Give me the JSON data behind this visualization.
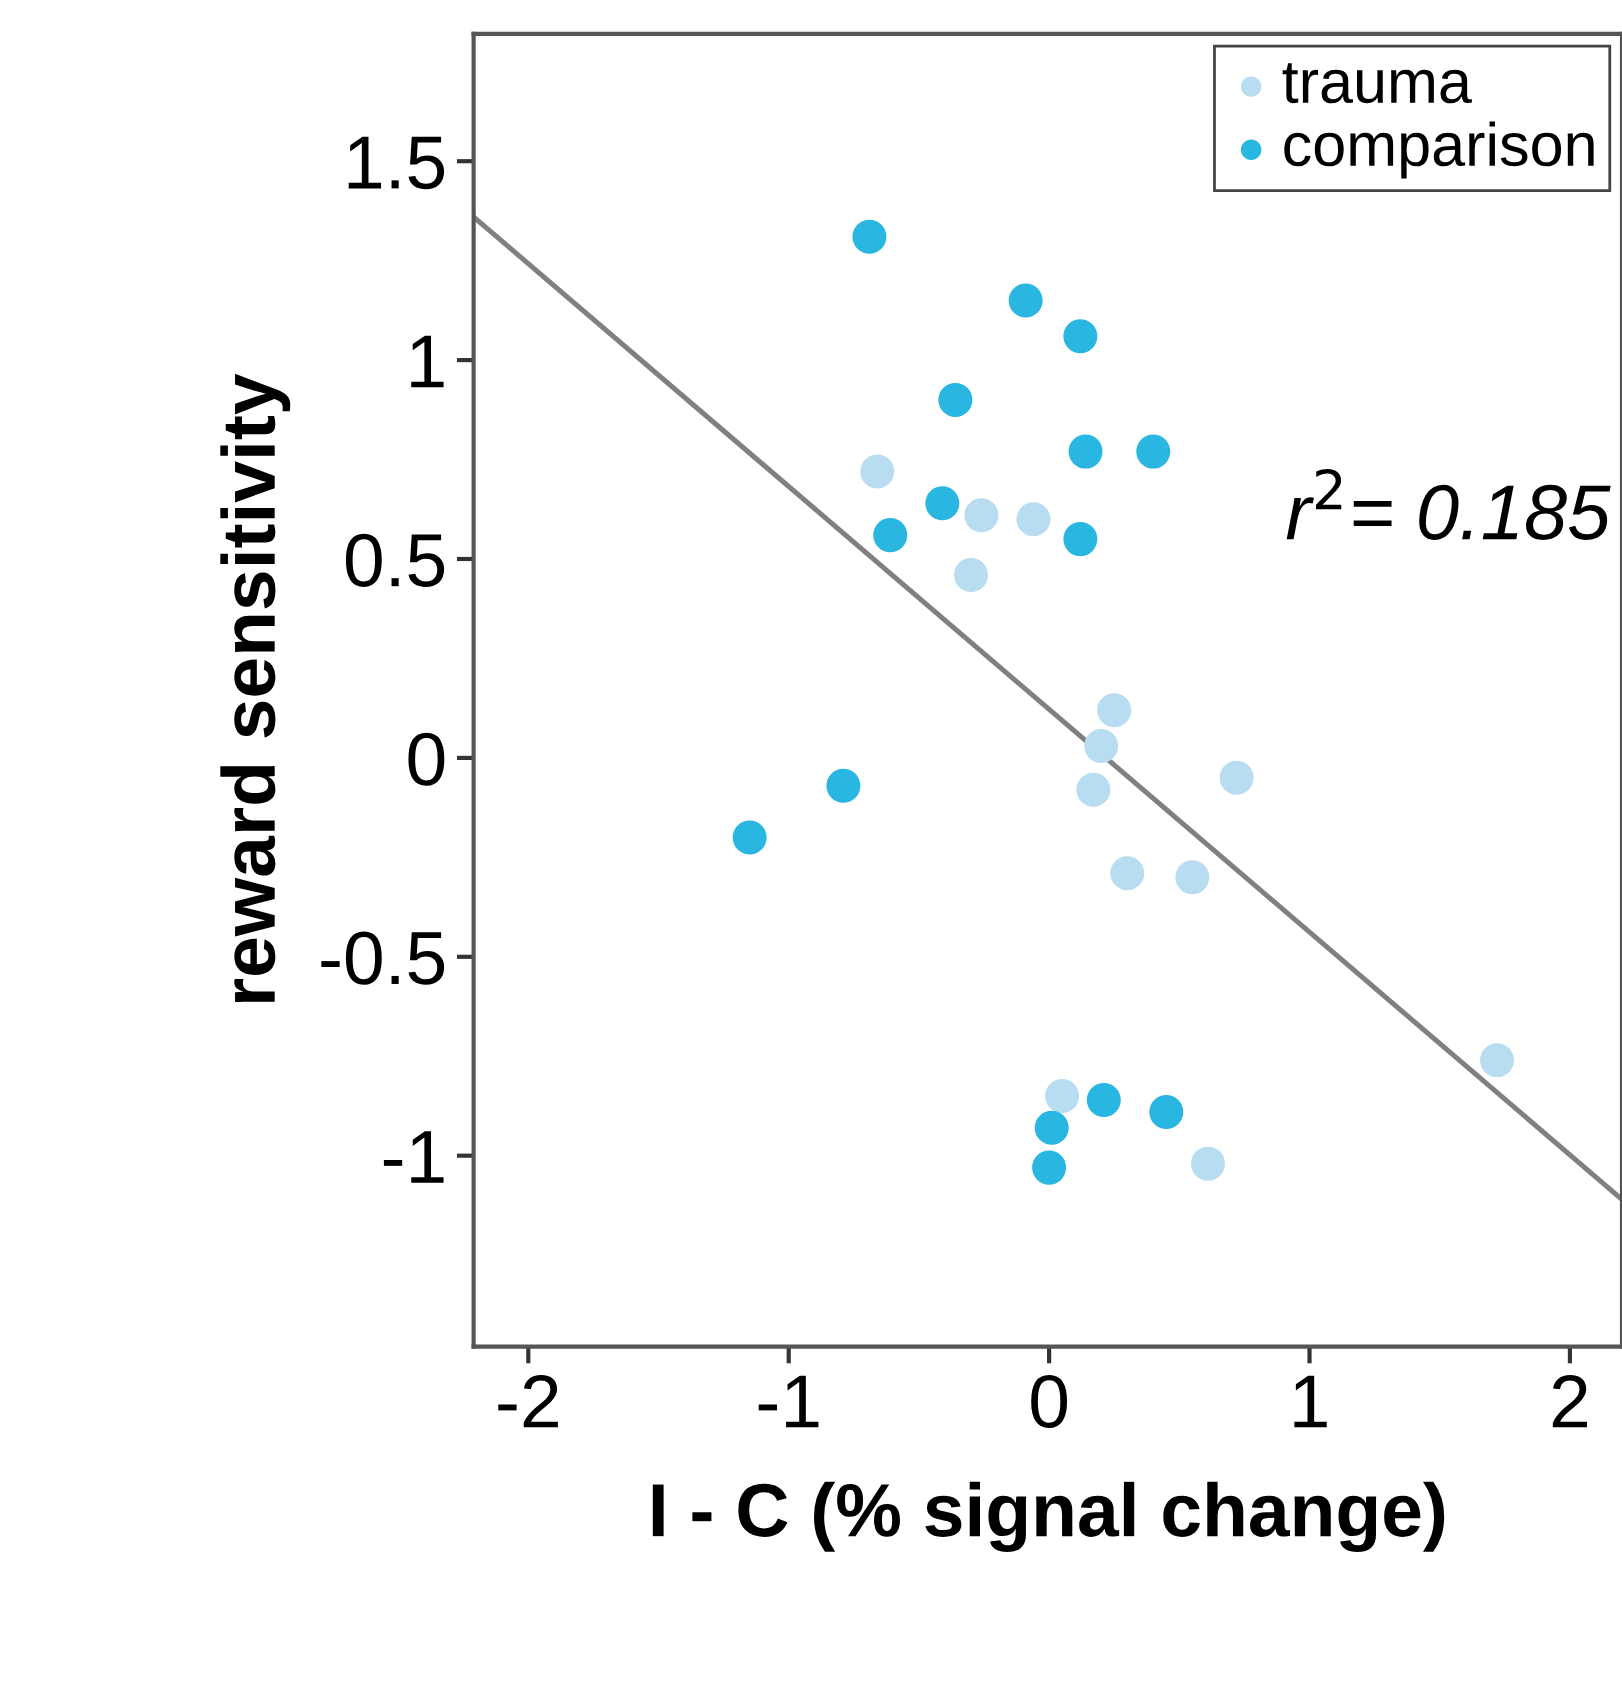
{
  "chart_data": {
    "type": "scatter",
    "xlabel": "I - C (% signal change)",
    "ylabel": "reward sensitivity",
    "xlim": [
      -2.21,
      2.2
    ],
    "ylim": [
      -1.48,
      1.82
    ],
    "xticks": [
      -2,
      -1,
      0,
      1,
      2
    ],
    "yticks": [
      {
        "value": -1,
        "label": "-1"
      },
      {
        "value": -0.5,
        "label": "-0.5"
      },
      0,
      0.5,
      1,
      1.5
    ],
    "grid": false,
    "legend": "top right",
    "marker": "circle",
    "annotations": [
      "r$^{2}$= 0.185"
    ],
    "series": [
      {
        "name": "trauma",
        "color": "#b8dcf0",
        "x": [
          -0.66,
          -0.26,
          -0.06,
          -0.3,
          0.25,
          0.2,
          0.17,
          0.72,
          0.3,
          0.55,
          1.72,
          0.05,
          0.61
        ],
        "values": [
          0.72,
          0.61,
          0.6,
          0.46,
          0.12,
          0.03,
          -0.08,
          -0.05,
          -0.29,
          -0.3,
          -0.76,
          -0.85,
          -1.02
        ]
      },
      {
        "name": "comparison",
        "color": "#29b6e0",
        "x": [
          -0.69,
          -0.09,
          0.12,
          -0.36,
          0.14,
          0.4,
          -0.41,
          -0.61,
          0.12,
          -0.79,
          -1.15,
          0.21,
          0.45,
          0.01,
          0.0
        ],
        "values": [
          1.31,
          1.15,
          1.06,
          0.9,
          0.77,
          0.77,
          0.64,
          0.56,
          0.55,
          -0.07,
          -0.2,
          -0.86,
          -0.89,
          -0.93,
          -1.03
        ]
      },
      {
        "type": "line",
        "color": "#808080",
        "line_style": "solid",
        "marker": "none",
        "x": [
          -2.21,
          2.2
        ],
        "values": [
          1.36,
          -1.11
        ]
      }
    ]
  }
}
